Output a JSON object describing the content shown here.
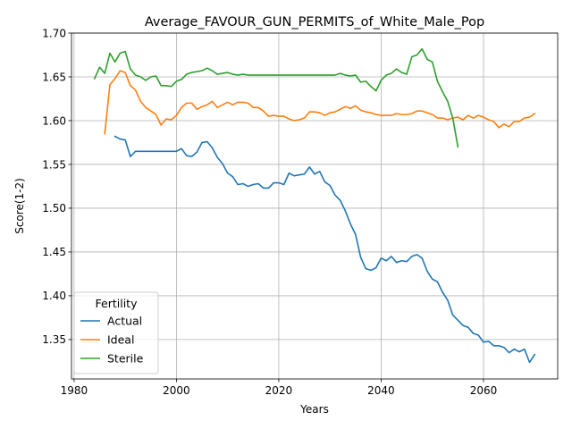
{
  "chart_data": {
    "type": "line",
    "title": "Average_FAVOUR_GUN_PERMITS_of_White_Male_Pop",
    "xlabel": "Years",
    "ylabel": "Score(1-2)",
    "xlim": [
      1979.5,
      2074.5
    ],
    "ylim": [
      1.305,
      1.7
    ],
    "xticks": [
      1980,
      2000,
      2020,
      2040,
      2060
    ],
    "xtick_labels": [
      "1980",
      "2000",
      "2020",
      "2040",
      "2060"
    ],
    "yticks": [
      1.35,
      1.4,
      1.45,
      1.5,
      1.55,
      1.6,
      1.65,
      1.7
    ],
    "ytick_labels": [
      "1.35",
      "1.40",
      "1.45",
      "1.50",
      "1.55",
      "1.60",
      "1.65",
      "1.70"
    ],
    "grid": true,
    "legend": {
      "title": "Fertility",
      "placement": "lower-left"
    },
    "series": [
      {
        "name": "Actual",
        "color": "#1f77b4",
        "x": [
          1988,
          1989,
          1990,
          1991,
          1992,
          1993,
          1994,
          1995,
          1996,
          1997,
          1998,
          1999,
          2000,
          2001,
          2002,
          2003,
          2004,
          2005,
          2006,
          2007,
          2008,
          2009,
          2010,
          2011,
          2012,
          2013,
          2014,
          2015,
          2016,
          2017,
          2018,
          2019,
          2020,
          2021,
          2022,
          2023,
          2024,
          2025,
          2026,
          2027,
          2028,
          2029,
          2030,
          2031,
          2032,
          2033,
          2034,
          2035,
          2036,
          2037,
          2038,
          2039,
          2040,
          2041,
          2042,
          2043,
          2044,
          2045,
          2046,
          2047,
          2048,
          2049,
          2050,
          2051,
          2052,
          2053,
          2054,
          2055,
          2056,
          2057,
          2058,
          2059,
          2060,
          2061,
          2062,
          2063,
          2064,
          2065,
          2066,
          2067,
          2068,
          2069,
          2070
        ],
        "values": [
          1.582,
          1.579,
          1.578,
          1.559,
          1.565,
          1.565,
          1.565,
          1.565,
          1.565,
          1.565,
          1.565,
          1.565,
          1.565,
          1.568,
          1.56,
          1.559,
          1.564,
          1.575,
          1.576,
          1.569,
          1.558,
          1.551,
          1.54,
          1.536,
          1.527,
          1.528,
          1.525,
          1.527,
          1.528,
          1.523,
          1.523,
          1.529,
          1.529,
          1.527,
          1.54,
          1.537,
          1.538,
          1.539,
          1.547,
          1.539,
          1.542,
          1.53,
          1.526,
          1.515,
          1.509,
          1.497,
          1.482,
          1.47,
          1.444,
          1.431,
          1.429,
          1.432,
          1.443,
          1.44,
          1.445,
          1.438,
          1.44,
          1.439,
          1.445,
          1.447,
          1.443,
          1.428,
          1.419,
          1.416,
          1.404,
          1.395,
          1.378,
          1.372,
          1.366,
          1.364,
          1.357,
          1.355,
          1.347,
          1.348,
          1.343,
          1.343,
          1.341,
          1.335,
          1.339,
          1.336,
          1.339,
          1.324,
          1.333
        ]
      },
      {
        "name": "Ideal",
        "color": "#ff7f0e",
        "x": [
          1986,
          1987,
          1988,
          1989,
          1990,
          1991,
          1992,
          1993,
          1994,
          1995,
          1996,
          1997,
          1998,
          1999,
          2000,
          2001,
          2002,
          2003,
          2004,
          2005,
          2006,
          2007,
          2008,
          2009,
          2010,
          2011,
          2012,
          2013,
          2014,
          2015,
          2016,
          2017,
          2018,
          2019,
          2020,
          2021,
          2022,
          2023,
          2024,
          2025,
          2026,
          2027,
          2028,
          2029,
          2030,
          2031,
          2032,
          2033,
          2034,
          2035,
          2036,
          2037,
          2038,
          2039,
          2040,
          2041,
          2042,
          2043,
          2044,
          2045,
          2046,
          2047,
          2048,
          2049,
          2050,
          2051,
          2052,
          2053,
          2054,
          2055,
          2056,
          2057,
          2058,
          2059,
          2060,
          2061,
          2062,
          2063,
          2064,
          2065,
          2066,
          2067,
          2068,
          2069,
          2070
        ],
        "values": [
          1.585,
          1.641,
          1.648,
          1.657,
          1.655,
          1.64,
          1.635,
          1.622,
          1.615,
          1.611,
          1.607,
          1.595,
          1.602,
          1.601,
          1.606,
          1.615,
          1.62,
          1.62,
          1.613,
          1.616,
          1.618,
          1.622,
          1.615,
          1.618,
          1.621,
          1.618,
          1.621,
          1.621,
          1.62,
          1.615,
          1.615,
          1.611,
          1.605,
          1.606,
          1.605,
          1.605,
          1.602,
          1.6,
          1.601,
          1.603,
          1.61,
          1.61,
          1.609,
          1.606,
          1.609,
          1.61,
          1.613,
          1.616,
          1.614,
          1.617,
          1.612,
          1.61,
          1.609,
          1.607,
          1.606,
          1.606,
          1.606,
          1.608,
          1.607,
          1.607,
          1.608,
          1.611,
          1.611,
          1.609,
          1.607,
          1.603,
          1.603,
          1.601,
          1.603,
          1.604,
          1.601,
          1.606,
          1.603,
          1.606,
          1.604,
          1.601,
          1.599,
          1.592,
          1.596,
          1.593,
          1.599,
          1.599,
          1.603,
          1.604,
          1.608
        ]
      },
      {
        "name": "Sterile",
        "color": "#2ca02c",
        "x": [
          1984,
          1985,
          1986,
          1987,
          1988,
          1989,
          1990,
          1991,
          1992,
          1993,
          1994,
          1995,
          1996,
          1997,
          1998,
          1999,
          2000,
          2001,
          2002,
          2003,
          2004,
          2005,
          2006,
          2007,
          2008,
          2009,
          2010,
          2011,
          2012,
          2013,
          2014,
          2015,
          2016,
          2017,
          2018,
          2019,
          2020,
          2021,
          2022,
          2023,
          2024,
          2025,
          2026,
          2027,
          2028,
          2029,
          2030,
          2031,
          2032,
          2033,
          2034,
          2035,
          2036,
          2037,
          2038,
          2039,
          2040,
          2041,
          2042,
          2043,
          2044,
          2045,
          2046,
          2047,
          2048,
          2049,
          2050,
          2051,
          2052,
          2053,
          2054,
          2055
        ],
        "values": [
          1.648,
          1.661,
          1.654,
          1.677,
          1.667,
          1.677,
          1.679,
          1.659,
          1.652,
          1.65,
          1.646,
          1.65,
          1.651,
          1.64,
          1.64,
          1.639,
          1.645,
          1.647,
          1.653,
          1.655,
          1.656,
          1.657,
          1.66,
          1.657,
          1.653,
          1.654,
          1.655,
          1.653,
          1.652,
          1.653,
          1.652,
          1.652,
          1.652,
          1.652,
          1.652,
          1.652,
          1.652,
          1.652,
          1.652,
          1.652,
          1.652,
          1.652,
          1.652,
          1.652,
          1.652,
          1.652,
          1.652,
          1.652,
          1.654,
          1.652,
          1.651,
          1.652,
          1.644,
          1.645,
          1.639,
          1.634,
          1.646,
          1.652,
          1.654,
          1.659,
          1.655,
          1.653,
          1.673,
          1.675,
          1.682,
          1.67,
          1.667,
          1.645,
          1.633,
          1.622,
          1.603,
          1.57
        ]
      }
    ]
  }
}
